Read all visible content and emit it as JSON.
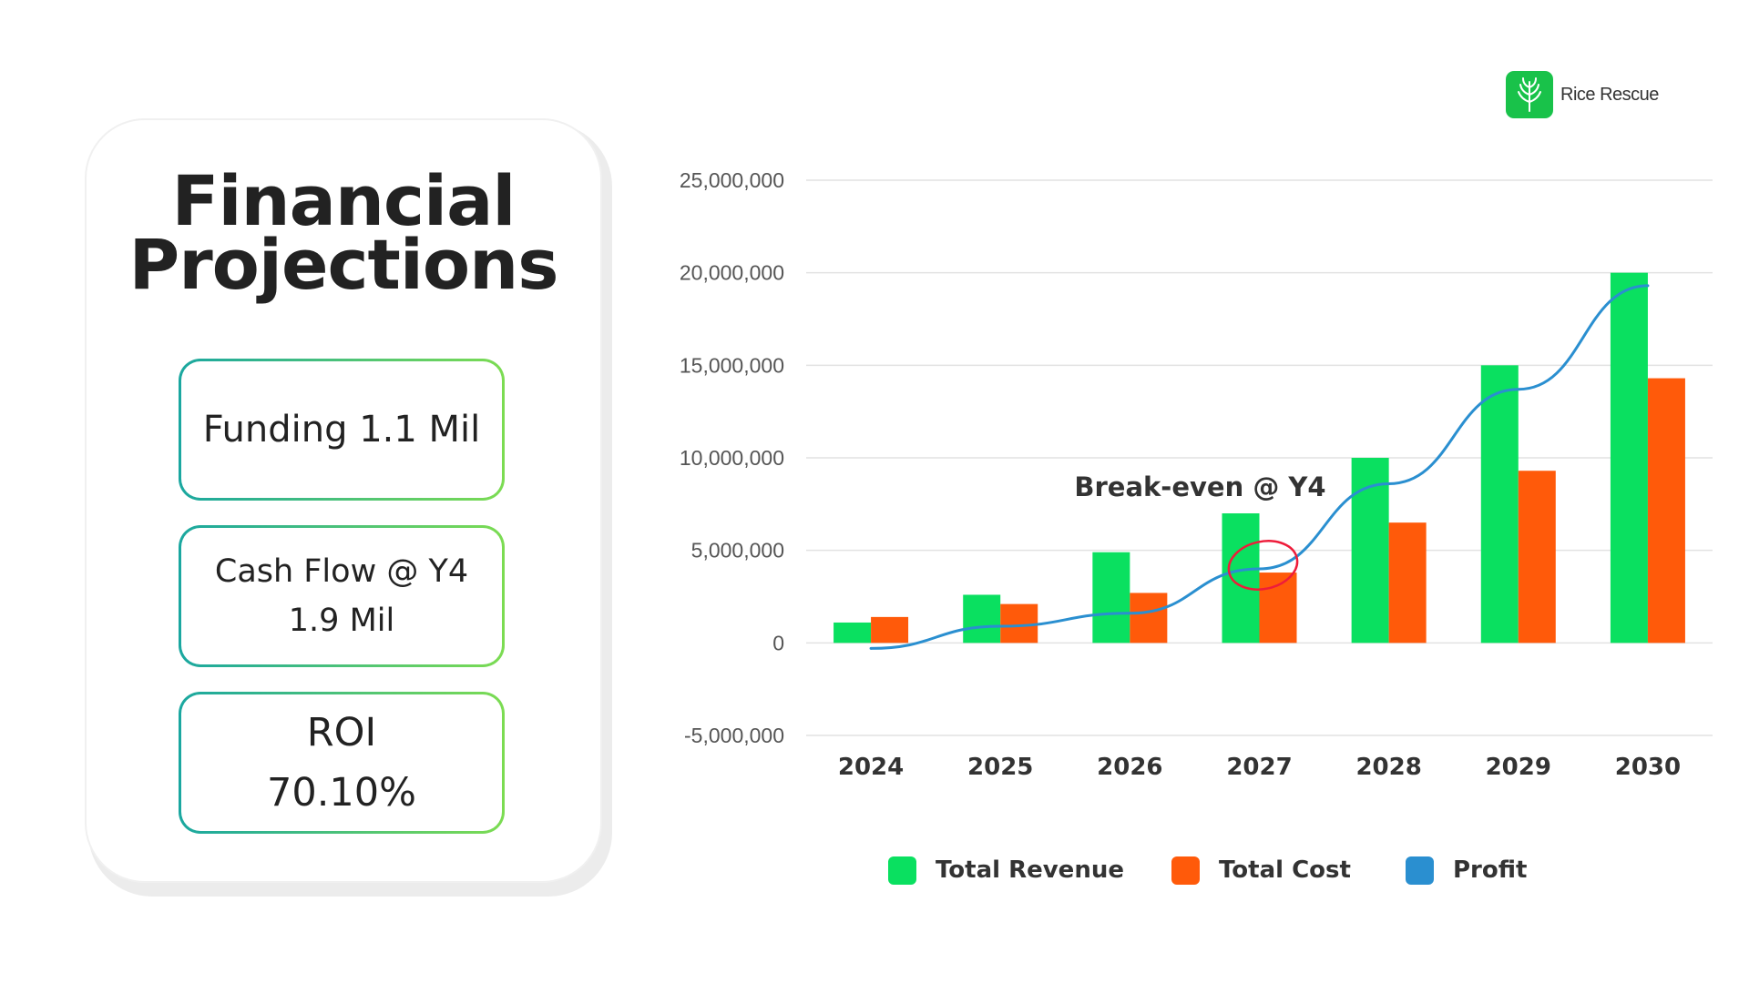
{
  "title": {
    "line1": "Financial",
    "line2": "Projections"
  },
  "kpis": [
    {
      "lines": [
        "Funding 1.1 Mil"
      ]
    },
    {
      "lines": [
        "Cash Flow @ Y4",
        "1.9 Mil"
      ]
    },
    {
      "lines": [
        "ROI",
        "70.10%"
      ]
    }
  ],
  "brand": {
    "name": "Rice Rescue",
    "icon": "rice-plant-icon",
    "color": "#19c24a"
  },
  "chart_data": {
    "type": "bar",
    "categories": [
      "2024",
      "2025",
      "2026",
      "2027",
      "2028",
      "2029",
      "2030"
    ],
    "series": [
      {
        "name": "Total Revenue",
        "kind": "bar",
        "color": "#0ae060",
        "values": [
          1100000,
          2600000,
          4900000,
          7000000,
          10000000,
          15000000,
          20000000
        ]
      },
      {
        "name": "Total Cost",
        "kind": "bar",
        "color": "#ff5a0a",
        "values": [
          1400000,
          2100000,
          2700000,
          3800000,
          6500000,
          9300000,
          14300000
        ]
      },
      {
        "name": "Profit",
        "kind": "line",
        "color": "#2a8fd0",
        "values": [
          -300000,
          900000,
          1600000,
          4000000,
          8600000,
          13700000,
          19300000
        ]
      }
    ],
    "yticks": [
      25000000,
      20000000,
      15000000,
      10000000,
      5000000,
      0,
      -5000000
    ],
    "ytick_labels": [
      "25,000,000",
      "20,000,000",
      "15,000,000",
      "10,000,000",
      "5,000,000",
      "0",
      "-5,000,000"
    ],
    "ylim": [
      -5000000,
      25000000
    ],
    "grid": true,
    "legend_position": "bottom",
    "annotation": {
      "text": "Break-even @ Y4",
      "category": "2027",
      "value": 4000000
    },
    "xlabel": "",
    "ylabel": ""
  }
}
